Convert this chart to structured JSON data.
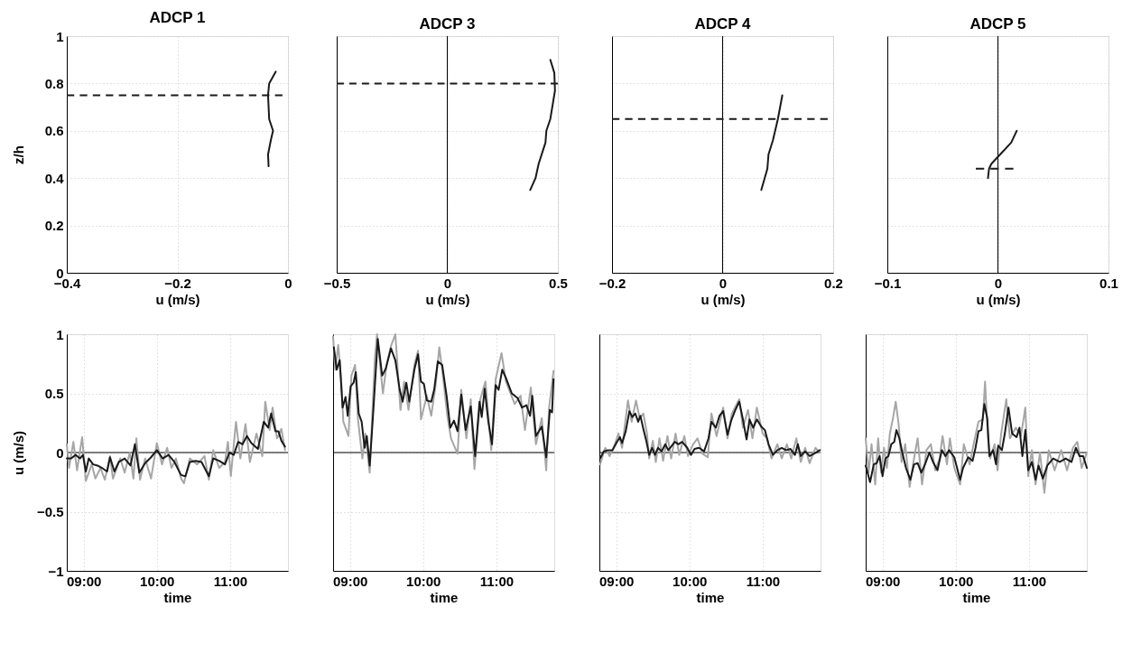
{
  "chart_data": [
    {
      "type": "line",
      "title": "ADCP 1",
      "xlabel": "u (m/s)",
      "ylabel": "z/h",
      "xlim": [
        -0.4,
        0
      ],
      "xticks": [
        -0.4,
        -0.2,
        0
      ],
      "ylim": [
        0,
        1
      ],
      "yticks": [
        0,
        0.2,
        0.4,
        0.6,
        0.8,
        1
      ],
      "grid": true,
      "series": [
        {
          "color": "#1a1a1a",
          "x": [
            -0.022,
            -0.034,
            -0.036,
            -0.034,
            -0.027,
            -0.031,
            -0.036,
            -0.035
          ],
          "values": [
            0.85,
            0.8,
            0.75,
            0.65,
            0.6,
            0.56,
            0.5,
            0.45
          ]
        },
        {
          "color": "#1a1a1a",
          "line_style": "dashed",
          "x": [
            -0.4,
            -0.01
          ],
          "values": [
            0.75,
            0.75
          ]
        }
      ]
    },
    {
      "type": "line",
      "title": "ADCP 3",
      "xlabel": "u (m/s)",
      "xlim": [
        -0.5,
        0.5
      ],
      "xticks": [
        -0.5,
        0,
        0.5
      ],
      "ylim": [
        0,
        1
      ],
      "yticks": [
        0,
        0.2,
        0.4,
        0.6,
        0.8,
        1
      ],
      "grid": true,
      "tick_labels": "x",
      "ref_lines": [
        {
          "axis": "x",
          "value": 0,
          "color": "#000000"
        }
      ],
      "series": [
        {
          "color": "#1a1a1a",
          "x": [
            0.466,
            0.484,
            0.487,
            0.466,
            0.448,
            0.444,
            0.413,
            0.399,
            0.375
          ],
          "values": [
            0.9,
            0.845,
            0.77,
            0.65,
            0.6,
            0.55,
            0.46,
            0.4,
            0.35
          ]
        },
        {
          "color": "#1a1a1a",
          "line_style": "dashed",
          "x": [
            -0.5,
            0.5
          ],
          "values": [
            0.8,
            0.8
          ]
        }
      ]
    },
    {
      "type": "line",
      "title": "ADCP 4",
      "xlabel": "u (m/s)",
      "xlim": [
        -0.2,
        0.2
      ],
      "xticks": [
        -0.2,
        0,
        0.2
      ],
      "ylim": [
        0,
        1
      ],
      "yticks": [
        0,
        0.2,
        0.4,
        0.6,
        0.8,
        1
      ],
      "grid": true,
      "tick_labels": "x",
      "ref_lines": [
        {
          "axis": "x",
          "value": 0,
          "color": "#000000"
        }
      ],
      "series": [
        {
          "color": "#1a1a1a",
          "x": [
            0.108,
            0.1,
            0.091,
            0.083,
            0.081,
            0.07
          ],
          "values": [
            0.75,
            0.65,
            0.56,
            0.5,
            0.44,
            0.35
          ]
        },
        {
          "color": "#1a1a1a",
          "line_style": "dashed",
          "x": [
            -0.2,
            0.19
          ],
          "values": [
            0.65,
            0.65
          ]
        }
      ]
    },
    {
      "type": "line",
      "title": "ADCP 5",
      "xlabel": "u (m/s)",
      "xlim": [
        -0.1,
        0.1
      ],
      "xticks": [
        -0.1,
        0,
        0.1
      ],
      "ylim": [
        0,
        1
      ],
      "yticks": [
        0,
        0.2,
        0.4,
        0.6,
        0.8,
        1
      ],
      "grid": true,
      "tick_labels": "x",
      "ref_lines": [
        {
          "axis": "x",
          "value": 0,
          "color": "#000000"
        }
      ],
      "series": [
        {
          "color": "#1a1a1a",
          "x": [
            0.017,
            0.012,
            0.002,
            -0.006,
            -0.008,
            -0.009
          ],
          "values": [
            0.6,
            0.55,
            0.5,
            0.46,
            0.44,
            0.4
          ]
        },
        {
          "color": "#1a1a1a",
          "line_style": "dashed",
          "x": [
            -0.02,
            0.014
          ],
          "values": [
            0.44,
            0.44
          ]
        }
      ]
    },
    {
      "type": "line",
      "xlabel": "time",
      "ylabel": "u (m/s)",
      "xlim": [
        8.77,
        11.79
      ],
      "xticks": [
        {
          "value": 9,
          "label": "09:00"
        },
        {
          "value": 10,
          "label": "10:00"
        },
        {
          "value": 11,
          "label": "11:00"
        }
      ],
      "ylim": [
        -1,
        1
      ],
      "yticks": [
        -1,
        -0.5,
        0,
        0.5,
        1
      ],
      "grid": true,
      "ref_lines": [
        {
          "axis": "y",
          "value": 0,
          "color": "#000000"
        }
      ],
      "series": [
        {
          "color": "#a6a6a6",
          "x": [
            8.77,
            8.8,
            8.86,
            8.91,
            8.98,
            9.03,
            9.11,
            9.16,
            9.23,
            9.29,
            9.36,
            9.4,
            9.5,
            9.56,
            9.63,
            9.68,
            9.72,
            9.77,
            9.84,
            9.92,
            10.0,
            10.07,
            10.14,
            10.2,
            10.26,
            10.33,
            10.37,
            10.45,
            10.55,
            10.65,
            10.71,
            10.77,
            10.85,
            10.93,
            10.97,
            11.01,
            11.08,
            11.14,
            11.21,
            11.27,
            11.36,
            11.44,
            11.48,
            11.54,
            11.58,
            11.64,
            11.66,
            11.7,
            11.75
          ],
          "values": [
            0.07,
            -0.13,
            0.09,
            -0.15,
            0.13,
            -0.24,
            -0.1,
            -0.22,
            -0.13,
            -0.23,
            -0.03,
            -0.22,
            -0.05,
            -0.17,
            0.0,
            -0.22,
            0.12,
            -0.23,
            -0.05,
            -0.22,
            0.08,
            -0.1,
            0.04,
            -0.13,
            -0.05,
            -0.22,
            -0.26,
            -0.05,
            -0.1,
            -0.03,
            -0.23,
            0.02,
            -0.13,
            -0.08,
            0.09,
            -0.2,
            0.26,
            -0.05,
            0.24,
            -0.08,
            0.16,
            -0.03,
            0.43,
            0.19,
            0.38,
            0.12,
            0.14,
            0.2,
            0.02
          ]
        },
        {
          "color": "#1a1a1a",
          "x": [
            8.77,
            8.83,
            8.89,
            8.95,
            8.99,
            9.03,
            9.07,
            9.13,
            9.19,
            9.25,
            9.32,
            9.36,
            9.42,
            9.48,
            9.56,
            9.64,
            9.7,
            9.76,
            9.84,
            9.92,
            10.0,
            10.08,
            10.16,
            10.24,
            10.33,
            10.39,
            10.45,
            10.53,
            10.61,
            10.71,
            10.77,
            10.85,
            10.93,
            10.99,
            11.05,
            11.11,
            11.17,
            11.23,
            11.29,
            11.38,
            11.46,
            11.52,
            11.56,
            11.62,
            11.66,
            11.7,
            11.75
          ],
          "values": [
            -0.05,
            -0.05,
            -0.02,
            -0.05,
            -0.02,
            -0.16,
            -0.05,
            -0.1,
            -0.11,
            -0.13,
            -0.16,
            -0.04,
            -0.16,
            -0.08,
            -0.05,
            -0.11,
            0.07,
            -0.17,
            -0.09,
            -0.04,
            0.02,
            -0.05,
            -0.02,
            -0.08,
            -0.19,
            -0.2,
            -0.08,
            -0.07,
            -0.08,
            -0.2,
            -0.05,
            -0.07,
            -0.1,
            0.0,
            -0.02,
            0.09,
            0.07,
            0.14,
            0.08,
            0.03,
            0.26,
            0.21,
            0.33,
            0.18,
            0.18,
            0.1,
            0.05
          ]
        }
      ]
    },
    {
      "type": "line",
      "xlabel": "time",
      "xlim": [
        8.77,
        11.79
      ],
      "xticks": [
        {
          "value": 9,
          "label": "09:00"
        },
        {
          "value": 10,
          "label": "10:00"
        },
        {
          "value": 11,
          "label": "11:00"
        }
      ],
      "ylim": [
        -1,
        1
      ],
      "yticks": [
        -1,
        -0.5,
        0,
        0.5,
        1
      ],
      "grid": true,
      "tick_labels": "x",
      "ref_lines": [
        {
          "axis": "y",
          "value": 0,
          "color": "#000000"
        }
      ],
      "series": [
        {
          "color": "#a6a6a6",
          "x": [
            8.77,
            8.8,
            8.84,
            8.88,
            8.91,
            8.98,
            9.02,
            9.07,
            9.11,
            9.17,
            9.21,
            9.27,
            9.34,
            9.37,
            9.45,
            9.5,
            9.56,
            9.62,
            9.69,
            9.74,
            9.8,
            9.88,
            9.93,
            9.97,
            10.05,
            10.11,
            10.17,
            10.22,
            10.27,
            10.33,
            10.38,
            10.47,
            10.52,
            10.59,
            10.65,
            10.7,
            10.78,
            10.85,
            10.93,
            10.99,
            11.07,
            11.13,
            11.25,
            11.33,
            11.39,
            11.47,
            11.54,
            11.62,
            11.68,
            11.72,
            11.78
          ],
          "values": [
            0.98,
            0.7,
            0.91,
            0.62,
            0.26,
            0.14,
            0.65,
            0.74,
            0.28,
            -0.05,
            0.16,
            -0.17,
            0.79,
            1.0,
            0.5,
            0.74,
            0.9,
            1.0,
            0.36,
            0.6,
            0.36,
            0.74,
            0.86,
            0.28,
            0.48,
            0.31,
            0.57,
            0.89,
            0.65,
            0.31,
            0.12,
            -0.01,
            0.53,
            0.12,
            0.45,
            -0.14,
            0.45,
            0.6,
            0.02,
            0.62,
            0.84,
            0.6,
            0.41,
            0.48,
            0.19,
            0.55,
            0.07,
            0.29,
            -0.15,
            0.38,
            0.69
          ]
        },
        {
          "color": "#1a1a1a",
          "x": [
            8.78,
            8.82,
            8.86,
            8.9,
            8.94,
            8.97,
            9.01,
            9.05,
            9.08,
            9.12,
            9.16,
            9.2,
            9.23,
            9.27,
            9.32,
            9.38,
            9.44,
            9.49,
            9.56,
            9.62,
            9.68,
            9.72,
            9.77,
            9.81,
            9.88,
            9.93,
            9.97,
            10.01,
            10.05,
            10.11,
            10.15,
            10.2,
            10.26,
            10.32,
            10.37,
            10.42,
            10.47,
            10.52,
            10.58,
            10.65,
            10.71,
            10.77,
            10.8,
            10.84,
            10.89,
            10.94,
            10.99,
            11.03,
            11.08,
            11.13,
            11.21,
            11.29,
            11.35,
            11.41,
            11.46,
            11.49,
            11.54,
            11.62,
            11.68,
            11.73,
            11.76,
            11.78
          ],
          "values": [
            0.89,
            0.7,
            0.78,
            0.38,
            0.47,
            0.31,
            0.56,
            0.59,
            0.68,
            0.33,
            0.26,
            0.04,
            0.14,
            -0.11,
            0.36,
            0.96,
            0.65,
            0.71,
            0.88,
            0.78,
            0.53,
            0.43,
            0.59,
            0.43,
            0.7,
            0.83,
            0.6,
            0.58,
            0.44,
            0.43,
            0.53,
            0.77,
            0.74,
            0.48,
            0.21,
            0.27,
            0.18,
            0.49,
            0.19,
            0.39,
            -0.03,
            0.43,
            0.3,
            0.54,
            0.26,
            0.07,
            0.57,
            0.53,
            0.7,
            0.63,
            0.5,
            0.46,
            0.38,
            0.4,
            0.31,
            0.48,
            0.14,
            0.22,
            -0.04,
            0.36,
            0.34,
            0.62
          ]
        }
      ]
    },
    {
      "type": "line",
      "xlabel": "time",
      "xlim": [
        8.77,
        11.79
      ],
      "xticks": [
        {
          "value": 9,
          "label": "09:00"
        },
        {
          "value": 10,
          "label": "10:00"
        },
        {
          "value": 11,
          "label": "11:00"
        }
      ],
      "ylim": [
        -1,
        1
      ],
      "yticks": [
        -1,
        -0.5,
        0,
        0.5,
        1
      ],
      "grid": true,
      "tick_labels": "x",
      "ref_lines": [
        {
          "axis": "y",
          "value": 0,
          "color": "#000000"
        }
      ],
      "series": [
        {
          "color": "#a6a6a6",
          "x": [
            8.78,
            8.85,
            8.91,
            8.98,
            9.03,
            9.08,
            9.12,
            9.16,
            9.21,
            9.27,
            9.32,
            9.37,
            9.42,
            9.45,
            9.5,
            9.54,
            9.59,
            9.64,
            9.7,
            9.75,
            9.81,
            9.86,
            9.93,
            9.98,
            10.05,
            10.11,
            10.18,
            10.25,
            10.3,
            10.37,
            10.46,
            10.52,
            10.58,
            10.68,
            10.73,
            10.8,
            10.86,
            10.92,
            11.0,
            11.06,
            11.12,
            11.2,
            11.26,
            11.33,
            11.39,
            11.46,
            11.52,
            11.58,
            11.64,
            11.72,
            11.78
          ],
          "values": [
            -0.1,
            0.04,
            -0.03,
            0.07,
            0.16,
            0.04,
            0.24,
            0.44,
            0.26,
            0.44,
            0.29,
            0.33,
            0.16,
            -0.05,
            0.1,
            -0.08,
            0.12,
            -0.07,
            0.14,
            -0.05,
            0.16,
            -0.02,
            0.14,
            -0.03,
            0.07,
            0.12,
            -0.01,
            -0.04,
            0.33,
            0.14,
            0.38,
            0.12,
            0.33,
            0.45,
            0.21,
            0.36,
            0.12,
            0.38,
            0.16,
            0.12,
            -0.05,
            0.07,
            -0.05,
            0.07,
            -0.05,
            0.12,
            -0.08,
            0.04,
            -0.09,
            0.04,
            0.0
          ]
        },
        {
          "color": "#1a1a1a",
          "x": [
            8.78,
            8.83,
            8.89,
            8.95,
            9.01,
            9.05,
            9.08,
            9.13,
            9.18,
            9.22,
            9.26,
            9.3,
            9.33,
            9.37,
            9.41,
            9.45,
            9.49,
            9.53,
            9.57,
            9.62,
            9.67,
            9.71,
            9.75,
            9.8,
            9.85,
            9.9,
            9.97,
            10.02,
            10.07,
            10.13,
            10.2,
            10.26,
            10.3,
            10.36,
            10.41,
            10.46,
            10.52,
            10.57,
            10.62,
            10.68,
            10.73,
            10.78,
            10.82,
            10.87,
            10.92,
            10.98,
            11.03,
            11.08,
            11.14,
            11.2,
            11.26,
            11.32,
            11.38,
            11.44,
            11.48,
            11.52,
            11.58,
            11.64,
            11.7,
            11.78
          ],
          "values": [
            -0.05,
            0.01,
            0.02,
            0.02,
            0.09,
            0.13,
            0.08,
            0.18,
            0.35,
            0.3,
            0.33,
            0.26,
            0.31,
            0.2,
            0.1,
            -0.02,
            0.04,
            -0.02,
            0.04,
            0.01,
            0.07,
            0.02,
            0.05,
            0.09,
            0.07,
            0.09,
            0.04,
            -0.02,
            0.03,
            0.04,
            0.01,
            0.12,
            0.26,
            0.21,
            0.31,
            0.35,
            0.15,
            0.27,
            0.35,
            0.43,
            0.28,
            0.11,
            0.28,
            0.21,
            0.28,
            0.22,
            0.19,
            0.07,
            -0.02,
            0.02,
            0.04,
            0.02,
            0.03,
            -0.02,
            0.07,
            -0.03,
            0.01,
            -0.03,
            -0.01,
            0.02
          ]
        }
      ]
    },
    {
      "type": "line",
      "xlabel": "time",
      "xlim": [
        8.77,
        11.79
      ],
      "xticks": [
        {
          "value": 9,
          "label": "09:00"
        },
        {
          "value": 10,
          "label": "10:00"
        },
        {
          "value": 11,
          "label": "11:00"
        }
      ],
      "ylim": [
        -1,
        1
      ],
      "yticks": [
        -1,
        -0.5,
        0,
        0.5,
        1
      ],
      "grid": true,
      "tick_labels": "x",
      "ref_lines": [
        {
          "axis": "y",
          "value": 0,
          "color": "#000000"
        }
      ],
      "series": [
        {
          "color": "#a6a6a6",
          "x": [
            8.77,
            8.81,
            8.85,
            8.9,
            8.94,
            8.98,
            9.02,
            9.06,
            9.1,
            9.14,
            9.18,
            9.22,
            9.26,
            9.31,
            9.37,
            9.43,
            9.48,
            9.54,
            9.6,
            9.66,
            9.72,
            9.78,
            9.82,
            9.88,
            9.92,
            9.98,
            10.06,
            10.11,
            10.19,
            10.25,
            10.31,
            10.37,
            10.4,
            10.44,
            10.47,
            10.53,
            10.57,
            10.62,
            10.69,
            10.74,
            10.82,
            10.89,
            10.95,
            10.99,
            11.04,
            11.09,
            11.15,
            11.21,
            11.27,
            11.35,
            11.44,
            11.52,
            11.6,
            11.66,
            11.72,
            11.79
          ],
          "values": [
            0.12,
            -0.17,
            0.07,
            -0.27,
            0.12,
            -0.17,
            0.04,
            -0.13,
            0.16,
            0.28,
            0.43,
            0.24,
            -0.08,
            0.07,
            -0.29,
            -0.05,
            0.12,
            -0.27,
            0.02,
            0.07,
            -0.15,
            -0.05,
            0.14,
            -0.1,
            0.12,
            -0.13,
            -0.27,
            0.07,
            -0.1,
            0.09,
            0.26,
            0.28,
            0.6,
            0.12,
            -0.05,
            0.07,
            -0.15,
            0.16,
            0.45,
            0.12,
            0.21,
            0.14,
            0.38,
            -0.2,
            0.02,
            -0.27,
            0.0,
            -0.34,
            0.02,
            -0.15,
            0.02,
            -0.15,
            0.04,
            0.09,
            -0.13,
            0.0
          ]
        },
        {
          "color": "#1a1a1a",
          "x": [
            8.77,
            8.83,
            8.88,
            8.92,
            8.96,
            9.0,
            9.04,
            9.08,
            9.12,
            9.16,
            9.19,
            9.23,
            9.27,
            9.32,
            9.38,
            9.43,
            9.48,
            9.53,
            9.58,
            9.64,
            9.69,
            9.75,
            9.81,
            9.86,
            9.91,
            9.98,
            10.06,
            10.1,
            10.17,
            10.23,
            10.27,
            10.31,
            10.35,
            10.39,
            10.43,
            10.46,
            10.51,
            10.55,
            10.58,
            10.63,
            10.67,
            10.72,
            10.77,
            10.83,
            10.87,
            10.91,
            10.95,
            10.99,
            11.04,
            11.09,
            11.13,
            11.19,
            11.25,
            11.33,
            11.42,
            11.5,
            11.58,
            11.64,
            11.69,
            11.74,
            11.79
          ],
          "values": [
            -0.11,
            -0.25,
            -0.1,
            -0.09,
            -0.03,
            -0.2,
            -0.05,
            -0.03,
            0.07,
            0.09,
            0.19,
            0.12,
            0.0,
            -0.13,
            -0.23,
            -0.1,
            -0.09,
            -0.17,
            -0.1,
            0.0,
            -0.08,
            -0.15,
            0.02,
            -0.03,
            0.02,
            -0.04,
            -0.23,
            -0.13,
            -0.04,
            -0.07,
            0.04,
            0.18,
            0.19,
            0.41,
            0.29,
            -0.03,
            0.02,
            -0.1,
            0.06,
            0.02,
            0.16,
            0.38,
            0.16,
            0.13,
            0.21,
            -0.03,
            0.19,
            -0.15,
            -0.08,
            -0.23,
            -0.11,
            -0.22,
            -0.11,
            -0.05,
            -0.08,
            -0.05,
            -0.08,
            0.04,
            -0.03,
            -0.03,
            -0.13
          ]
        }
      ]
    }
  ]
}
